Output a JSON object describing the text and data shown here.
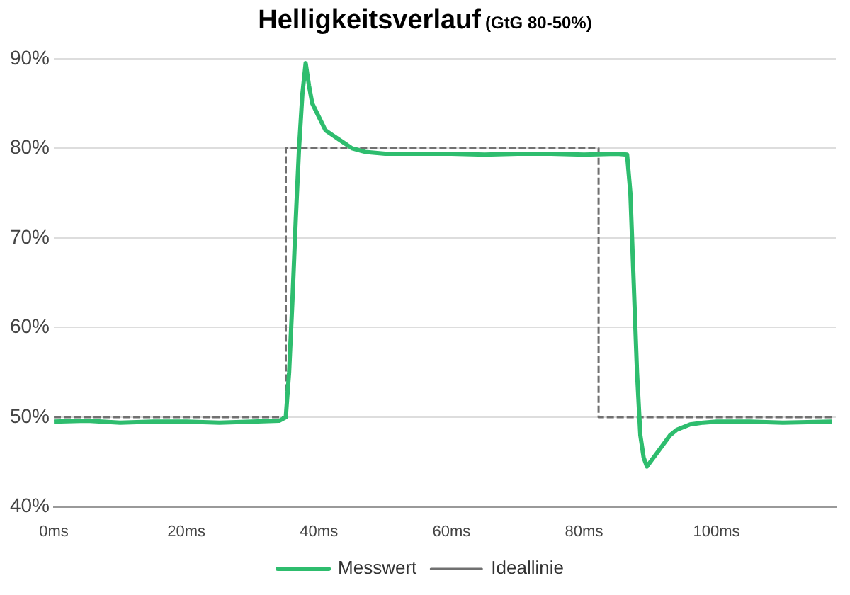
{
  "chart_data": {
    "type": "line",
    "title": "Helligkeitsverlauf",
    "subtitle": "(GtG 80-50%)",
    "xlim": [
      0,
      118
    ],
    "xticks": [
      {
        "value": 0,
        "label": "0ms"
      },
      {
        "value": 20,
        "label": "20ms"
      },
      {
        "value": 40,
        "label": "40ms"
      },
      {
        "value": 60,
        "label": "60ms"
      },
      {
        "value": 80,
        "label": "80ms"
      },
      {
        "value": 100,
        "label": "100ms"
      }
    ],
    "ylim": [
      40,
      90
    ],
    "yticks": [
      {
        "value": 40,
        "label": "40%"
      },
      {
        "value": 50,
        "label": "50%"
      },
      {
        "value": 60,
        "label": "60%"
      },
      {
        "value": 70,
        "label": "70%"
      },
      {
        "value": 80,
        "label": "80%"
      },
      {
        "value": 90,
        "label": "90%"
      }
    ],
    "grid": "y",
    "legend": "bottom",
    "marker": "none",
    "series": [
      {
        "name": "Messwert",
        "color": "#2ebd6e",
        "line_style": "solid",
        "x": [
          0,
          5,
          10,
          15,
          20,
          25,
          30,
          34,
          35,
          35.5,
          36,
          36.5,
          37,
          37.5,
          38,
          38.5,
          39,
          40,
          41,
          42,
          43,
          44,
          45,
          47,
          50,
          55,
          60,
          65,
          70,
          75,
          80,
          85,
          86.5,
          87,
          87.5,
          88,
          88.5,
          89,
          89.5,
          90,
          91,
          92,
          93,
          94,
          96,
          98,
          100,
          105,
          110,
          117.4
        ],
        "values": [
          49.5,
          49.6,
          49.4,
          49.5,
          49.5,
          49.4,
          49.5,
          49.6,
          50,
          55,
          63,
          72,
          80,
          86,
          89.5,
          87,
          85,
          83.5,
          82,
          81.5,
          81,
          80.5,
          80,
          79.6,
          79.4,
          79.4,
          79.4,
          79.3,
          79.4,
          79.4,
          79.3,
          79.4,
          79.3,
          75,
          65,
          55,
          48,
          45.5,
          44.5,
          45,
          46,
          47,
          48,
          48.6,
          49.2,
          49.4,
          49.5,
          49.5,
          49.4,
          49.5
        ]
      },
      {
        "name": "Ideallinie",
        "color": "#707070",
        "line_style": "dashed",
        "x": [
          0,
          35,
          35,
          82.2,
          82.2,
          117.4
        ],
        "values": [
          50,
          50,
          80,
          80,
          50,
          50
        ]
      }
    ]
  }
}
